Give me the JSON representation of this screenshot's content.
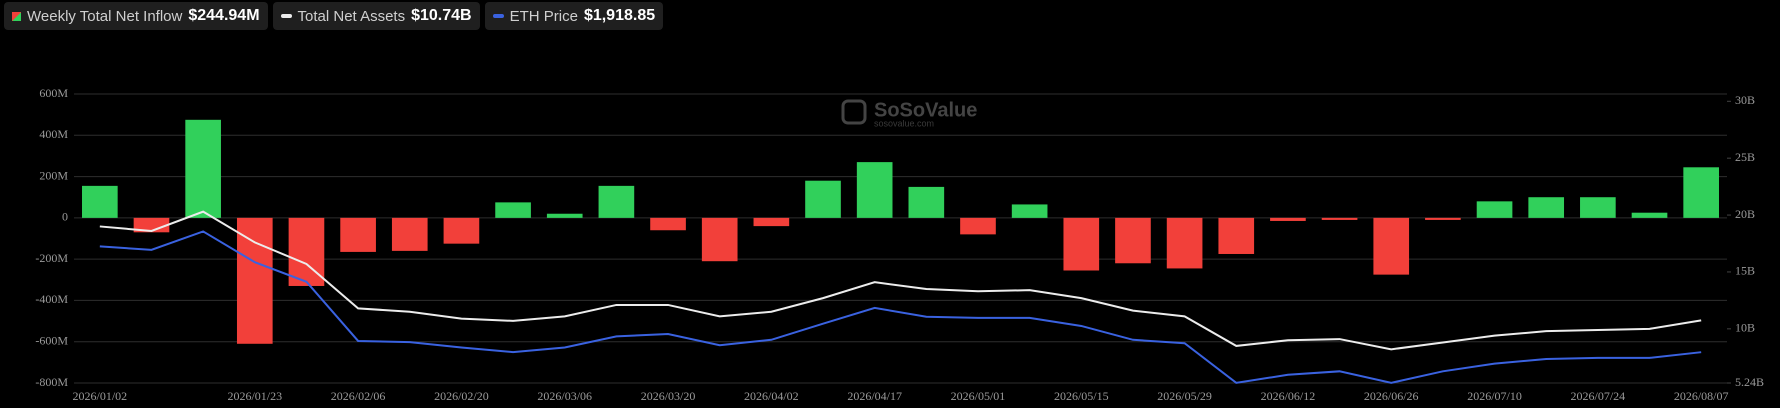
{
  "chart_data": {
    "type": "combo",
    "watermark": [
      "SoSoValue",
      "sosovalue.com"
    ],
    "categories": [
      "2026/01/02",
      null,
      null,
      "2026/01/23",
      null,
      "2026/02/06",
      null,
      "2026/02/20",
      null,
      "2026/03/06",
      null,
      "2026/03/20",
      null,
      "2026/04/02",
      null,
      "2026/04/17",
      null,
      "2026/05/01",
      null,
      "2026/05/15",
      null,
      "2026/05/29",
      null,
      "2026/06/12",
      null,
      "2026/06/26",
      null,
      "2026/07/10",
      null,
      "2026/07/24",
      null,
      "2026/08/07"
    ],
    "series": [
      {
        "name": "Weekly Total Net Inflow",
        "headline": "$244.94M",
        "type": "bar",
        "color": "#31d05b",
        "negative_color": "#f2403a",
        "values": [
          155,
          -70,
          475,
          -610,
          -330,
          -165,
          -160,
          -125,
          75,
          20,
          155,
          -60,
          -210,
          -40,
          180,
          270,
          150,
          -80,
          65,
          -255,
          -220,
          -245,
          -175,
          -15,
          -10,
          -275,
          -10,
          80,
          100,
          100,
          25,
          244.94
        ]
      },
      {
        "name": "Total Net Assets",
        "headline": "$10.74B",
        "type": "line",
        "axis": "y2",
        "color": "#ececec",
        "values": [
          19.0,
          18.6,
          20.3,
          17.6,
          15.7,
          11.8,
          11.5,
          10.9,
          10.7,
          11.1,
          12.1,
          12.1,
          11.1,
          11.5,
          12.7,
          14.1,
          13.5,
          13.3,
          13.4,
          12.7,
          11.6,
          11.1,
          8.5,
          9.0,
          9.1,
          8.2,
          8.8,
          9.4,
          9.8,
          9.9,
          10.0,
          10.74
        ]
      },
      {
        "name": "ETH Price",
        "headline": "$1,918.85",
        "type": "line",
        "axis": "y3",
        "color": "#3a62e0",
        "values": [
          3295,
          3250,
          3490,
          3090,
          2835,
          2065,
          2050,
          1980,
          1920,
          1980,
          2125,
          2155,
          2010,
          2080,
          2290,
          2495,
          2380,
          2365,
          2365,
          2260,
          2080,
          2035,
          1520,
          1625,
          1670,
          1520,
          1670,
          1770,
          1830,
          1845,
          1845,
          1918.85
        ]
      }
    ],
    "ylim": [
      -800,
      600
    ],
    "yticks": [
      {
        "value": 600,
        "label": "600M"
      },
      {
        "value": 400,
        "label": "400M"
      },
      {
        "value": 200,
        "label": "200M"
      },
      0,
      {
        "value": -200,
        "label": "-200M"
      },
      {
        "value": -400,
        "label": "-400M"
      },
      {
        "value": -600,
        "label": "-600M"
      },
      {
        "value": -800,
        "label": "-800M"
      }
    ],
    "y2lim": [
      5.24,
      30.64
    ],
    "y2ticks": [
      {
        "value": 30,
        "label": "30B"
      },
      {
        "value": 25,
        "label": "25B"
      },
      {
        "value": 20,
        "label": "20B"
      },
      {
        "value": 15,
        "label": "15B"
      },
      {
        "value": 10,
        "label": "10B"
      },
      {
        "value": 5.24,
        "label": "5.24B"
      }
    ],
    "y3lim": [
      1518,
      5278
    ],
    "grid": true
  }
}
